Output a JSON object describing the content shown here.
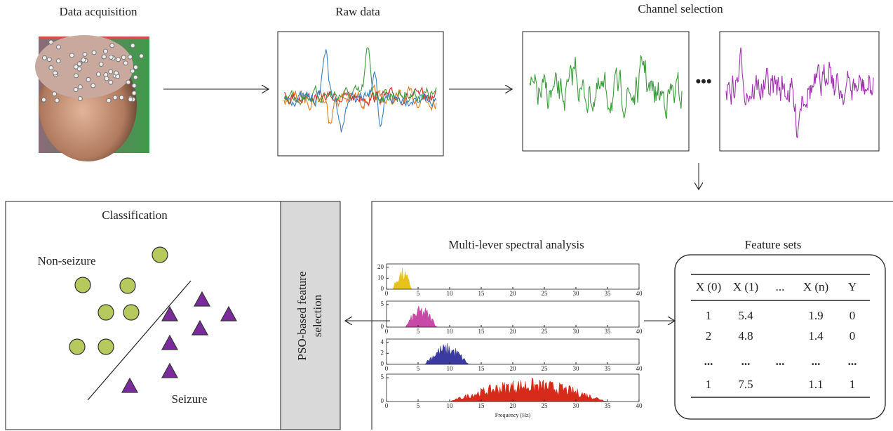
{
  "steps": {
    "acquisition": "Data acquisition",
    "raw": "Raw data",
    "channel": "Channel selection"
  },
  "classification": {
    "title": "Classification",
    "non_seizure": "Non-seizure",
    "seizure": "Seizure"
  },
  "pso": "PSO-based feature selection",
  "spectral": {
    "title": "Multi-lever spectral analysis",
    "xlabel": "Frequency (Hz)",
    "xticks": [
      0,
      5,
      10,
      15,
      20,
      25,
      30,
      35,
      40
    ],
    "panels": [
      {
        "yticks": [
          0,
          10,
          20
        ]
      },
      {
        "yticks": [
          0,
          5
        ]
      },
      {
        "yticks": [
          0,
          2,
          4
        ]
      },
      {
        "yticks": [
          0,
          5
        ]
      }
    ]
  },
  "features": {
    "title": "Feature sets",
    "columns": [
      "X (0)",
      "X (1)",
      "...",
      "X (n)",
      "Y"
    ],
    "rows": [
      [
        1,
        5.4,
        1.9,
        0
      ],
      [
        2,
        4.8,
        1.4,
        0
      ]
    ],
    "ellipsis_row": [
      "...",
      "...",
      "...",
      "...",
      "..."
    ],
    "last_row": [
      1,
      7.5,
      1.1,
      1
    ]
  }
}
